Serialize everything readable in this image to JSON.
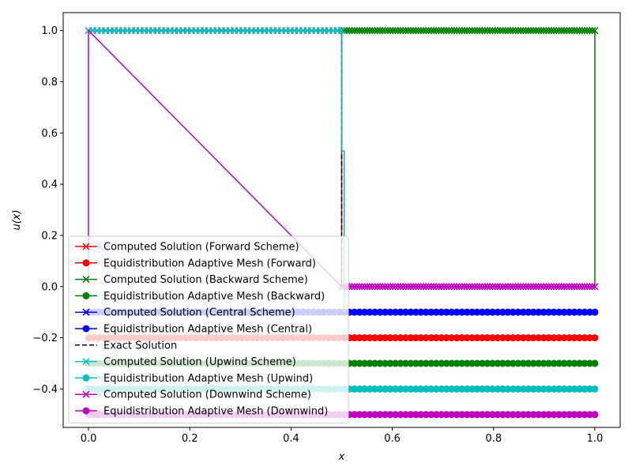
{
  "chart_data": {
    "type": "line",
    "title": "",
    "xlabel": "x",
    "ylabel": "u(x)",
    "xlim": [
      -0.05,
      1.05
    ],
    "ylim": [
      -0.55,
      1.07
    ],
    "xticks": [
      0.0,
      0.2,
      0.4,
      0.6,
      0.8,
      1.0
    ],
    "xtick_labels": [
      "0.0",
      "0.2",
      "0.4",
      "0.6",
      "0.8",
      "1.0"
    ],
    "yticks": [
      -0.4,
      -0.2,
      0.0,
      0.2,
      0.4,
      0.6,
      0.8,
      1.0
    ],
    "ytick_labels": [
      "−0.4",
      "−0.2",
      "0.0",
      "0.2",
      "0.4",
      "0.6",
      "0.8",
      "1.0"
    ],
    "grid": false,
    "legend_position": "lower-left",
    "series": [
      {
        "name": "Computed Solution (Forward Scheme)",
        "color": "#ff0000",
        "marker": "x",
        "linestyle": "solid",
        "x": [
          0,
          0.5,
          0.5,
          1.0
        ],
        "y": [
          1,
          1,
          0,
          0
        ],
        "marker_x_range": [
          0,
          0.5
        ],
        "marker_count": 60
      },
      {
        "name": "Equidistribution Adaptive Mesh (Forward)",
        "color": "#ff0000",
        "marker": "o",
        "linestyle": "solid",
        "x": [
          0,
          1.0
        ],
        "y": [
          -0.2,
          -0.2
        ],
        "marker_x_range": [
          0,
          1.0
        ],
        "marker_count": 100
      },
      {
        "name": "Computed Solution (Backward Scheme)",
        "color": "#008000",
        "marker": "x",
        "linestyle": "solid",
        "x": [
          0.5,
          1.0,
          1.0
        ],
        "y": [
          1,
          1,
          0
        ],
        "marker_x_range": [
          0.5,
          1.0
        ],
        "marker_count": 100
      },
      {
        "name": "Equidistribution Adaptive Mesh (Backward)",
        "color": "#008000",
        "marker": "o",
        "linestyle": "solid",
        "x": [
          0,
          1.0
        ],
        "y": [
          -0.3,
          -0.3
        ],
        "marker_x_range": [
          0,
          1.0
        ],
        "marker_count": 100
      },
      {
        "name": "Computed Solution (Central Scheme)",
        "color": "#0000ff",
        "marker": "x",
        "linestyle": "solid",
        "x": [
          1.0
        ],
        "y": [
          0
        ],
        "marker_x_range": [
          1.0,
          1.0
        ],
        "marker_count": 1
      },
      {
        "name": "Equidistribution Adaptive Mesh (Central)",
        "color": "#0000ff",
        "marker": "o",
        "linestyle": "solid",
        "x": [
          0,
          1.0
        ],
        "y": [
          -0.1,
          -0.1
        ],
        "marker_x_range": [
          0,
          1.0
        ],
        "marker_count": 100
      },
      {
        "name": "Exact Solution",
        "color": "#000000",
        "marker": "none",
        "linestyle": "dashed",
        "x": [
          0,
          0.5,
          0.5,
          1.0
        ],
        "y": [
          1,
          1,
          0,
          0
        ]
      },
      {
        "name": "Computed Solution (Upwind Scheme)",
        "color": "#00bfbf",
        "marker": "x",
        "linestyle": "solid",
        "x": [
          0,
          0.5,
          0.5,
          0.505,
          0.505
        ],
        "y": [
          1,
          1,
          0.53,
          0.53,
          -0.1
        ],
        "marker_x_range": [
          0,
          0.5
        ],
        "marker_count": 60
      },
      {
        "name": "Equidistribution Adaptive Mesh (Upwind)",
        "color": "#00bfbf",
        "marker": "o",
        "linestyle": "solid",
        "x": [
          0,
          1.0
        ],
        "y": [
          -0.4,
          -0.4
        ],
        "marker_x_range": [
          0,
          1.0
        ],
        "marker_count": 100
      },
      {
        "name": "Computed Solution (Downwind Scheme)",
        "color": "#bf00bf",
        "marker": "x",
        "linestyle": "solid",
        "x": [
          0,
          0,
          0.5,
          1.0
        ],
        "y": [
          0,
          1,
          0,
          0
        ],
        "marker_x_range": [
          0.5,
          1.0
        ],
        "marker_count": 100
      },
      {
        "name": "Equidistribution Adaptive Mesh (Downwind)",
        "color": "#bf00bf",
        "marker": "o",
        "linestyle": "solid",
        "x": [
          0,
          1.0
        ],
        "y": [
          -0.5,
          -0.5
        ],
        "marker_x_range": [
          0,
          1.0
        ],
        "marker_count": 100
      }
    ]
  }
}
